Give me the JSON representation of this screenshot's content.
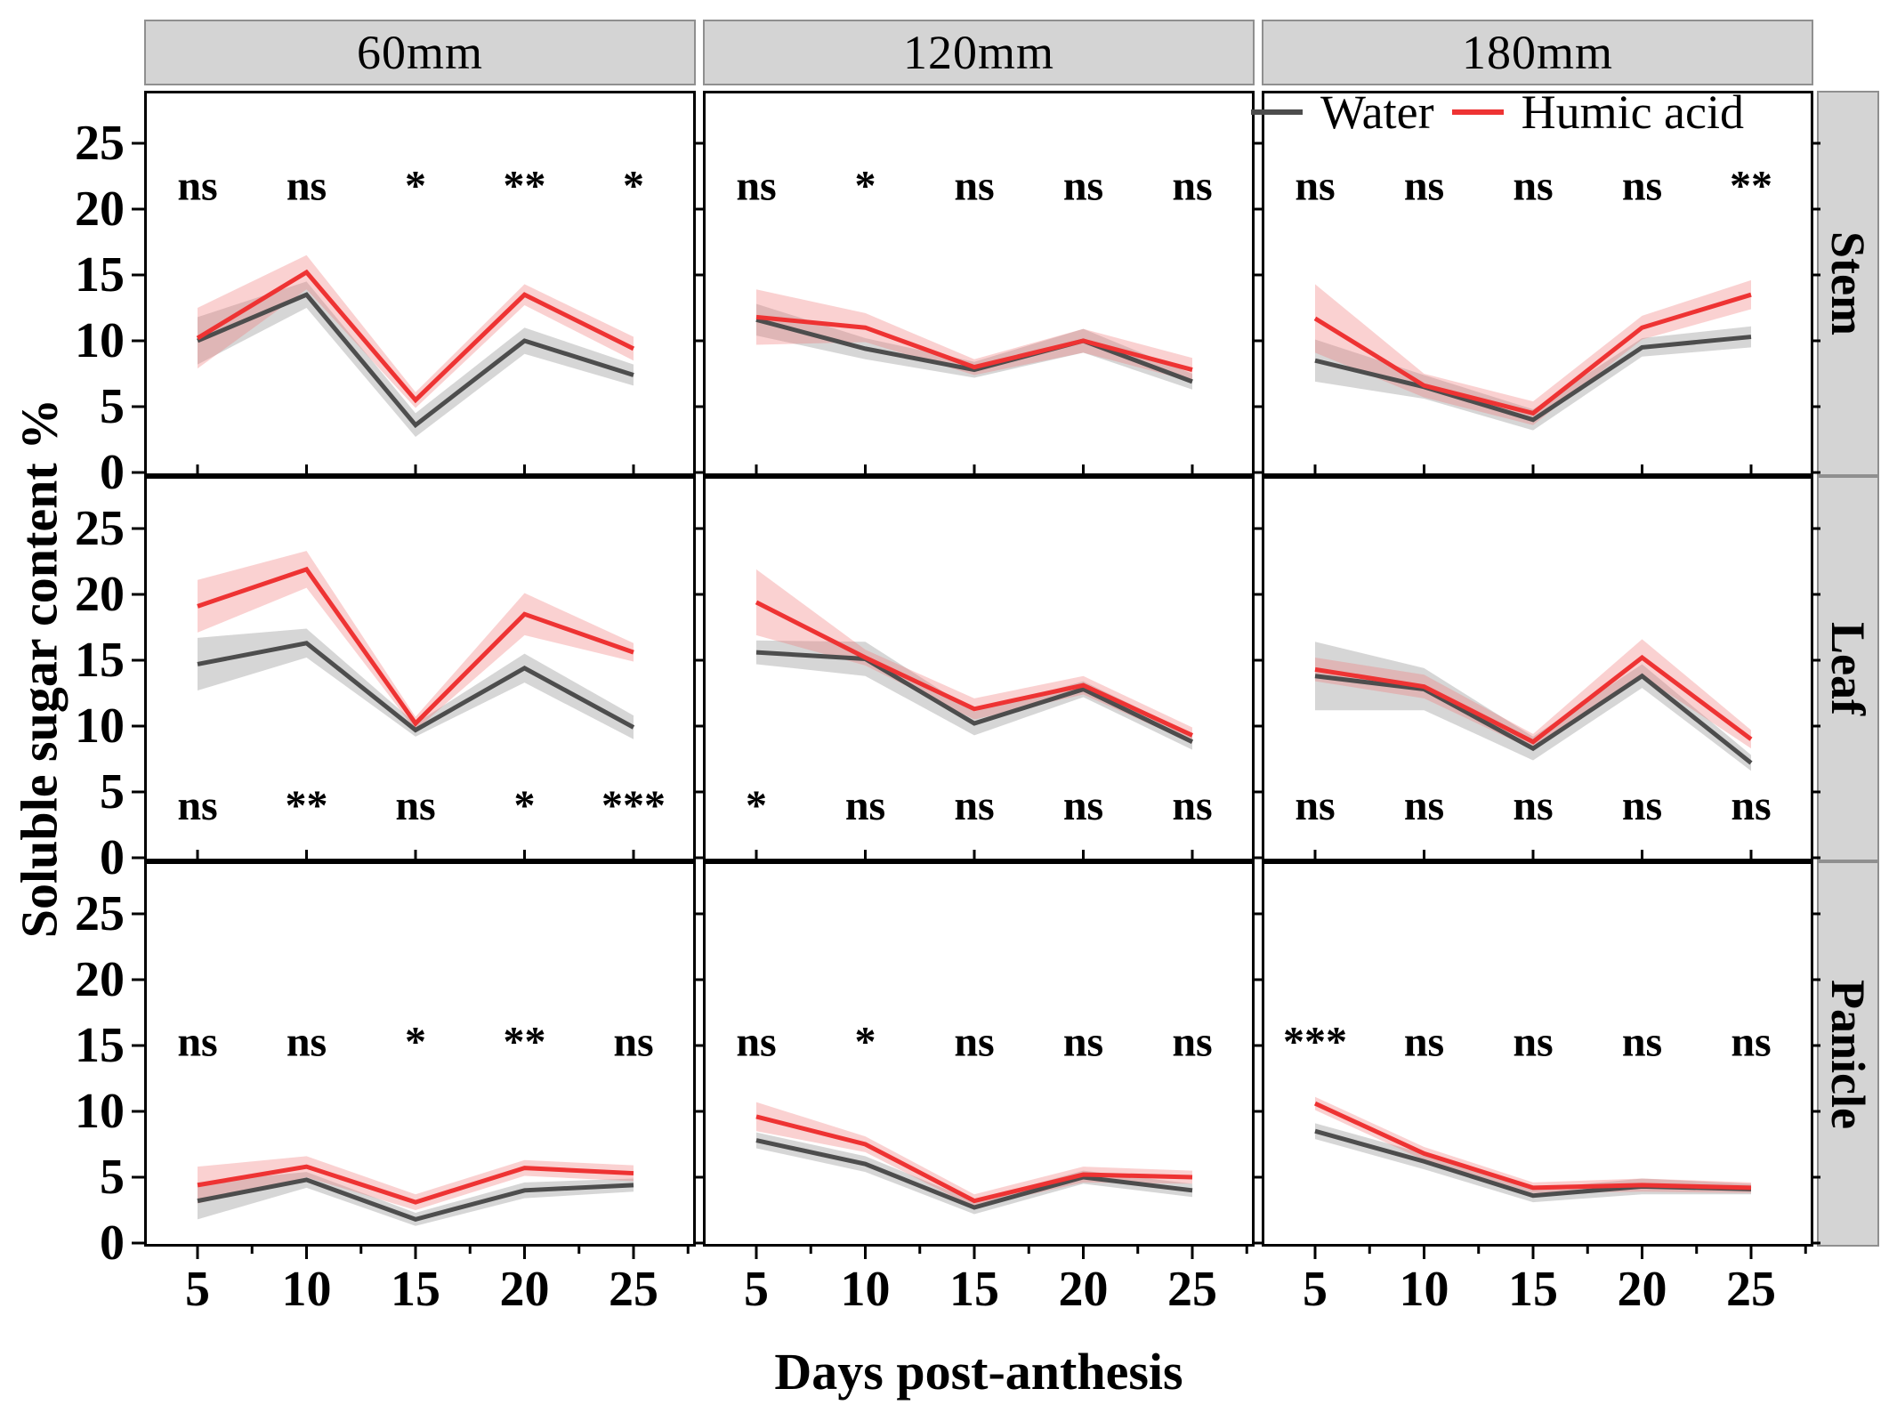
{
  "figure": {
    "xlabel": "Days post-anthesis",
    "ylabel": "Soluble sugar content %",
    "legend": [
      {
        "label": "Water",
        "color": "#4d4d4d"
      },
      {
        "label": "Humic acid",
        "color": "#ee3333"
      }
    ]
  },
  "chart_data": {
    "type": "line",
    "x": [
      5,
      10,
      15,
      20,
      25
    ],
    "x_ticks": [
      5,
      10,
      15,
      20,
      25
    ],
    "y_ticks": [
      0,
      5,
      10,
      15,
      20,
      25
    ],
    "ylim": [
      0,
      28.9
    ],
    "xlabel": "Days post-anthesis",
    "ylabel": "Soluble sugar content %",
    "grid": "off",
    "legend_position": "top-right",
    "col_facets": [
      "60mm",
      "120mm",
      "180mm"
    ],
    "row_facets": [
      "Stem",
      "Leaf",
      "Panicle"
    ],
    "series_names": [
      "Water",
      "Humic acid"
    ],
    "colors": {
      "water_line": "#4d4d4d",
      "humic_line": "#ee3333",
      "water_band": "#8a8a8a",
      "humic_band": "#f07a7a",
      "strip_bg": "#d4d4d4"
    },
    "panels": [
      {
        "row": "Stem",
        "col": "60mm",
        "water": [
          10.0,
          13.5,
          3.6,
          10.0,
          7.4
        ],
        "water_err": [
          1.8,
          1.0,
          0.9,
          1.0,
          0.8
        ],
        "humic": [
          10.2,
          15.2,
          5.5,
          13.5,
          9.4
        ],
        "humic_err": [
          2.3,
          1.3,
          0.6,
          0.8,
          0.9
        ],
        "sig": [
          "ns",
          "ns",
          "*",
          "**",
          "*"
        ],
        "sig_y": 21.8
      },
      {
        "row": "Stem",
        "col": "120mm",
        "water": [
          11.6,
          9.4,
          7.8,
          10.0,
          6.9
        ],
        "water_err": [
          1.2,
          0.8,
          0.6,
          0.9,
          0.6
        ],
        "humic": [
          11.8,
          11.0,
          8.0,
          10.0,
          7.8
        ],
        "humic_err": [
          2.1,
          1.1,
          0.6,
          0.9,
          0.9
        ],
        "sig": [
          "ns",
          "*",
          "ns",
          "ns",
          "ns"
        ],
        "sig_y": 21.8
      },
      {
        "row": "Stem",
        "col": "180mm",
        "water": [
          8.5,
          6.5,
          4.0,
          9.5,
          10.3
        ],
        "water_err": [
          1.6,
          0.9,
          0.8,
          0.7,
          0.8
        ],
        "humic": [
          11.7,
          6.6,
          4.5,
          11.0,
          13.5
        ],
        "humic_err": [
          2.6,
          0.9,
          0.9,
          0.9,
          1.1
        ],
        "sig": [
          "ns",
          "ns",
          "ns",
          "ns",
          "**"
        ],
        "sig_y": 21.8
      },
      {
        "row": "Leaf",
        "col": "60mm",
        "water": [
          14.7,
          16.3,
          9.7,
          14.4,
          9.9
        ],
        "water_err": [
          2.0,
          1.1,
          0.5,
          1.1,
          0.9
        ],
        "humic": [
          19.1,
          21.9,
          10.2,
          18.5,
          15.6
        ],
        "humic_err": [
          2.0,
          1.4,
          0.5,
          1.6,
          0.7
        ],
        "sig": [
          "ns",
          "**",
          "ns",
          "*",
          "***"
        ],
        "sig_y": 4.0
      },
      {
        "row": "Leaf",
        "col": "120mm",
        "water": [
          15.6,
          15.1,
          10.2,
          12.8,
          8.8
        ],
        "water_err": [
          0.9,
          1.3,
          0.9,
          0.6,
          0.6
        ],
        "humic": [
          19.4,
          15.2,
          11.3,
          13.1,
          9.3
        ],
        "humic_err": [
          2.5,
          0.6,
          0.8,
          0.7,
          0.6
        ],
        "sig": [
          "*",
          "ns",
          "ns",
          "ns",
          "ns"
        ],
        "sig_y": 4.0
      },
      {
        "row": "Leaf",
        "col": "180mm",
        "water": [
          13.8,
          12.8,
          8.3,
          13.8,
          7.2
        ],
        "water_err": [
          2.6,
          1.6,
          0.9,
          0.9,
          0.6
        ],
        "humic": [
          14.3,
          13.0,
          8.8,
          15.2,
          9.0
        ],
        "humic_err": [
          0.9,
          0.9,
          0.6,
          1.4,
          0.7
        ],
        "sig": [
          "ns",
          "ns",
          "ns",
          "ns",
          "ns"
        ],
        "sig_y": 4.0
      },
      {
        "row": "Panicle",
        "col": "60mm",
        "water": [
          3.2,
          4.8,
          1.8,
          4.0,
          4.4
        ],
        "water_err": [
          1.4,
          0.6,
          0.5,
          0.6,
          0.5
        ],
        "humic": [
          4.4,
          5.8,
          3.1,
          5.7,
          5.3
        ],
        "humic_err": [
          1.4,
          0.8,
          0.6,
          0.6,
          0.6
        ],
        "sig": [
          "ns",
          "ns",
          "*",
          "**",
          "ns"
        ],
        "sig_y": 15.3
      },
      {
        "row": "Panicle",
        "col": "120mm",
        "water": [
          7.8,
          6.0,
          2.7,
          5.0,
          4.0
        ],
        "water_err": [
          0.6,
          0.6,
          0.5,
          0.5,
          0.5
        ],
        "humic": [
          9.6,
          7.5,
          3.2,
          5.2,
          5.0
        ],
        "humic_err": [
          1.1,
          0.6,
          0.5,
          0.6,
          0.5
        ],
        "sig": [
          "ns",
          "*",
          "ns",
          "ns",
          "ns"
        ],
        "sig_y": 15.3
      },
      {
        "row": "Panicle",
        "col": "180mm",
        "water": [
          8.5,
          6.2,
          3.6,
          4.3,
          4.1
        ],
        "water_err": [
          0.6,
          0.6,
          0.5,
          0.6,
          0.4
        ],
        "humic": [
          10.6,
          6.8,
          4.2,
          4.4,
          4.2
        ],
        "humic_err": [
          0.5,
          0.5,
          0.4,
          0.5,
          0.4
        ],
        "sig": [
          "***",
          "ns",
          "ns",
          "ns",
          "ns"
        ],
        "sig_y": 15.3
      }
    ]
  }
}
